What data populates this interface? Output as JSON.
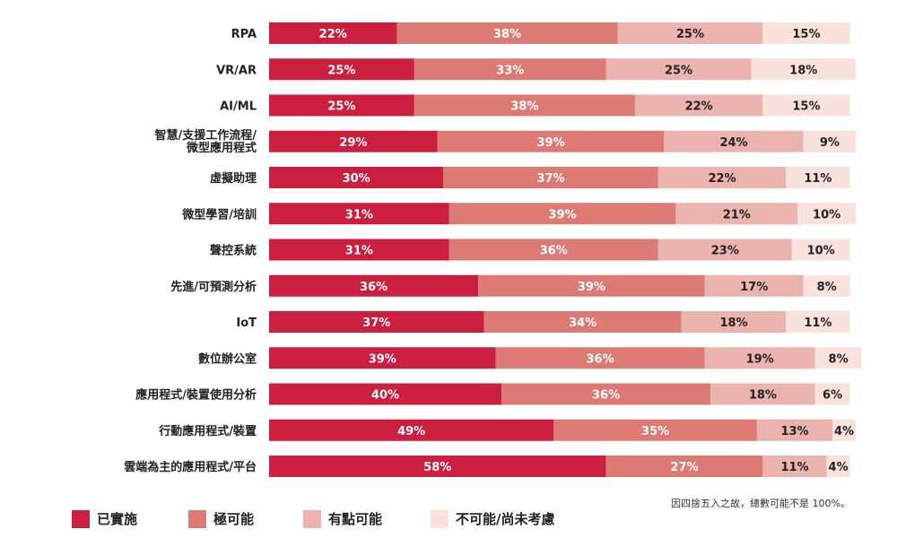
{
  "chart_data": {
    "type": "bar",
    "orientation": "horizontal",
    "stacked": true,
    "categories": [
      "RPA",
      "VR/AR",
      "AI/ML",
      "智慧/支援工作流程/微型應用程式",
      "虛擬助理",
      "微型學習/培訓",
      "聲控系統",
      "先進/可預測分析",
      "IoT",
      "數位辦公室",
      "應用程式/裝置使用分析",
      "行動應用程式/裝置",
      "雲端為主的應用程式/平台"
    ],
    "category_lines": [
      [
        "RPA"
      ],
      [
        "VR/AR"
      ],
      [
        "AI/ML"
      ],
      [
        "智慧/支援工作流程/",
        "微型應用程式"
      ],
      [
        "虛擬助理"
      ],
      [
        "微型學習/培訓"
      ],
      [
        "聲控系統"
      ],
      [
        "先進/可預測分析"
      ],
      [
        "IoT"
      ],
      [
        "數位辦公室"
      ],
      [
        "應用程式/裝置使用分析"
      ],
      [
        "行動應用程式/裝置"
      ],
      [
        "雲端為主的應用程式/平台"
      ]
    ],
    "series": [
      {
        "name": "已實施",
        "color": "#cc1f3f",
        "label_color": "#ffffff",
        "values": [
          22,
          25,
          25,
          29,
          30,
          31,
          31,
          36,
          37,
          39,
          40,
          49,
          58
        ]
      },
      {
        "name": "極可能",
        "color": "#dd7a74",
        "label_color": "#ffffff",
        "values": [
          38,
          33,
          38,
          39,
          37,
          39,
          36,
          39,
          34,
          36,
          36,
          35,
          27
        ]
      },
      {
        "name": "有點可能",
        "color": "#ecb4ae",
        "label_color": "#222222",
        "values": [
          25,
          25,
          22,
          24,
          22,
          21,
          23,
          17,
          18,
          19,
          18,
          13,
          11
        ]
      },
      {
        "name": "不可能/尚未考慮",
        "color": "#f9e1dc",
        "label_color": "#222222",
        "values": [
          15,
          18,
          15,
          9,
          11,
          10,
          10,
          8,
          11,
          8,
          6,
          4,
          4
        ]
      }
    ],
    "value_suffix": "%",
    "xlim": [
      0,
      101
    ],
    "legend_position": "bottom",
    "note": "因四捨五入之故，總數可能不是 100%。"
  }
}
